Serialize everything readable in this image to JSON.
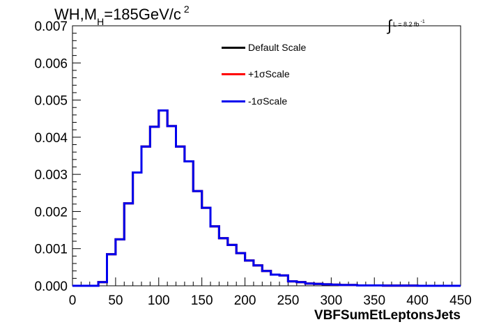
{
  "title": {
    "prefix": "WH,M",
    "subscript": "H",
    "suffix": "=185GeV/c",
    "superscript": "2"
  },
  "luminosity": {
    "symbol": "∫",
    "text": "L = 8.2 fb",
    "exponent": "-1"
  },
  "colors": {
    "default": "#000000",
    "plus": "#ff0000",
    "minus": "#0000ee",
    "axis": "#000000",
    "background": "#ffffff"
  },
  "chart_data": {
    "type": "line",
    "style": "step-histogram",
    "xlabel": "VBFSumEtLeptonsJets",
    "ylabel": "",
    "xlim": [
      0,
      450
    ],
    "ylim": [
      0,
      0.007
    ],
    "x_ticks": [
      "0",
      "50",
      "100",
      "150",
      "200",
      "250",
      "300",
      "350",
      "400",
      "450"
    ],
    "y_ticks": [
      "0.000",
      "0.001",
      "0.002",
      "0.003",
      "0.004",
      "0.005",
      "0.006",
      "0.007"
    ],
    "grid": false,
    "legend_position": "top-center",
    "bin_edges": [
      0,
      10,
      20,
      30,
      40,
      50,
      60,
      70,
      80,
      90,
      100,
      110,
      120,
      130,
      140,
      150,
      160,
      170,
      180,
      190,
      200,
      210,
      220,
      230,
      240,
      250,
      260,
      270,
      280,
      290,
      300,
      310,
      320,
      330,
      340,
      350,
      360,
      370,
      380,
      390,
      400,
      410,
      420,
      430,
      440,
      450
    ],
    "series": [
      {
        "name": "Default Scale",
        "color": "#000000",
        "values": [
          0,
          0,
          0,
          0.0001,
          0.00085,
          0.00125,
          0.00222,
          0.00305,
          0.00375,
          0.00428,
          0.00472,
          0.0043,
          0.00375,
          0.00335,
          0.00255,
          0.0021,
          0.0016,
          0.00128,
          0.0011,
          0.00088,
          0.00068,
          0.00055,
          0.0004,
          0.0003,
          0.00028,
          0.00012,
          0.0001,
          6e-05,
          5e-05,
          4e-05,
          3e-05,
          2e-05,
          2e-05,
          1e-05,
          1e-05,
          1e-05,
          5e-06,
          5e-06,
          5e-06,
          5e-06,
          0,
          0,
          0,
          0,
          0
        ]
      },
      {
        "name": "+1σScale",
        "color": "#ff0000",
        "values": [
          0,
          0,
          0,
          0.0001,
          0.00085,
          0.00125,
          0.00222,
          0.00305,
          0.00375,
          0.00428,
          0.00472,
          0.0043,
          0.00375,
          0.00335,
          0.00255,
          0.0021,
          0.0016,
          0.00128,
          0.0011,
          0.00088,
          0.00068,
          0.00055,
          0.0004,
          0.0003,
          0.00028,
          0.00012,
          0.0001,
          6e-05,
          5e-05,
          4e-05,
          3e-05,
          2e-05,
          2e-05,
          1e-05,
          1e-05,
          1e-05,
          5e-06,
          5e-06,
          5e-06,
          5e-06,
          0,
          0,
          0,
          0,
          0
        ]
      },
      {
        "name": "-1σScale",
        "color": "#0000ee",
        "values": [
          0,
          0,
          0,
          0.0001,
          0.00085,
          0.00125,
          0.00222,
          0.00305,
          0.00375,
          0.00428,
          0.00472,
          0.0043,
          0.00375,
          0.00335,
          0.00255,
          0.0021,
          0.0016,
          0.00128,
          0.0011,
          0.00088,
          0.00068,
          0.00055,
          0.0004,
          0.0003,
          0.00028,
          0.00012,
          0.0001,
          6e-05,
          5e-05,
          4e-05,
          3e-05,
          2e-05,
          2e-05,
          1e-05,
          1e-05,
          1e-05,
          5e-06,
          5e-06,
          5e-06,
          5e-06,
          0,
          0,
          0,
          0,
          0
        ]
      }
    ]
  }
}
